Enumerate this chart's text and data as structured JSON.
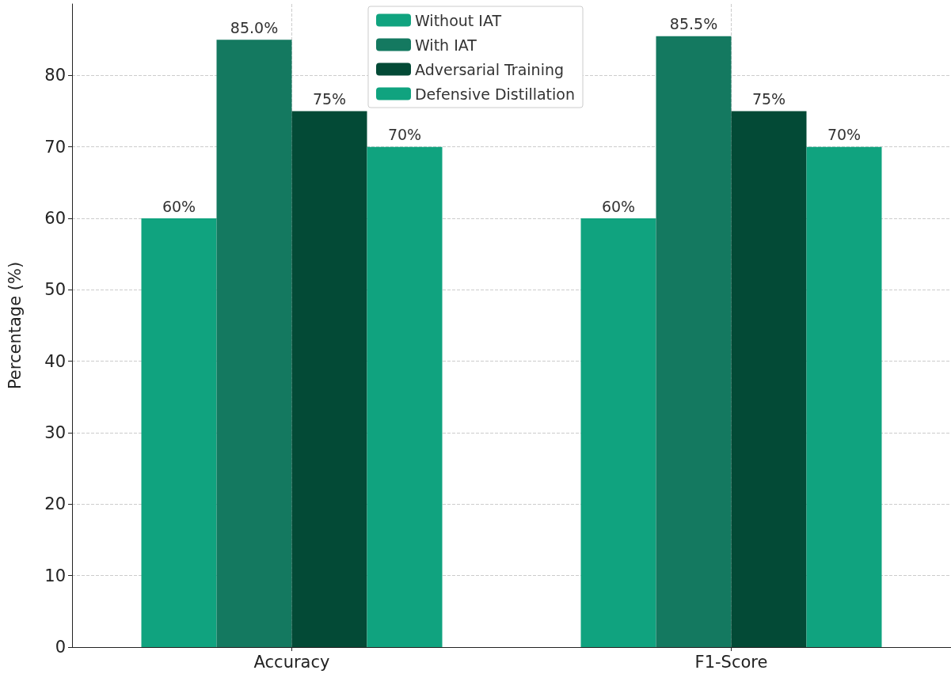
{
  "chart_data": {
    "type": "bar",
    "ylabel": "Percentage (%)",
    "categories": [
      "Accuracy",
      "F1-Score"
    ],
    "series": [
      {
        "name": "Without IAT",
        "color": "#10a37f",
        "values": [
          60,
          60
        ],
        "value_labels": [
          "60%",
          "60%"
        ]
      },
      {
        "name": "With IAT",
        "color": "#147960",
        "values": [
          85.0,
          85.5
        ],
        "value_labels": [
          "85.0%",
          "85.5%"
        ]
      },
      {
        "name": "Adversarial Training",
        "color": "#034a36",
        "values": [
          75,
          75
        ],
        "value_labels": [
          "75%",
          "75%"
        ]
      },
      {
        "name": "Defensive Distillation",
        "color": "#10a37f",
        "values": [
          70,
          70
        ],
        "value_labels": [
          "70%",
          "70%"
        ]
      }
    ],
    "ylim": [
      0,
      90
    ],
    "yticks": [
      0,
      10,
      20,
      30,
      40,
      50,
      60,
      70,
      80
    ],
    "grid": true,
    "legend": "top"
  }
}
